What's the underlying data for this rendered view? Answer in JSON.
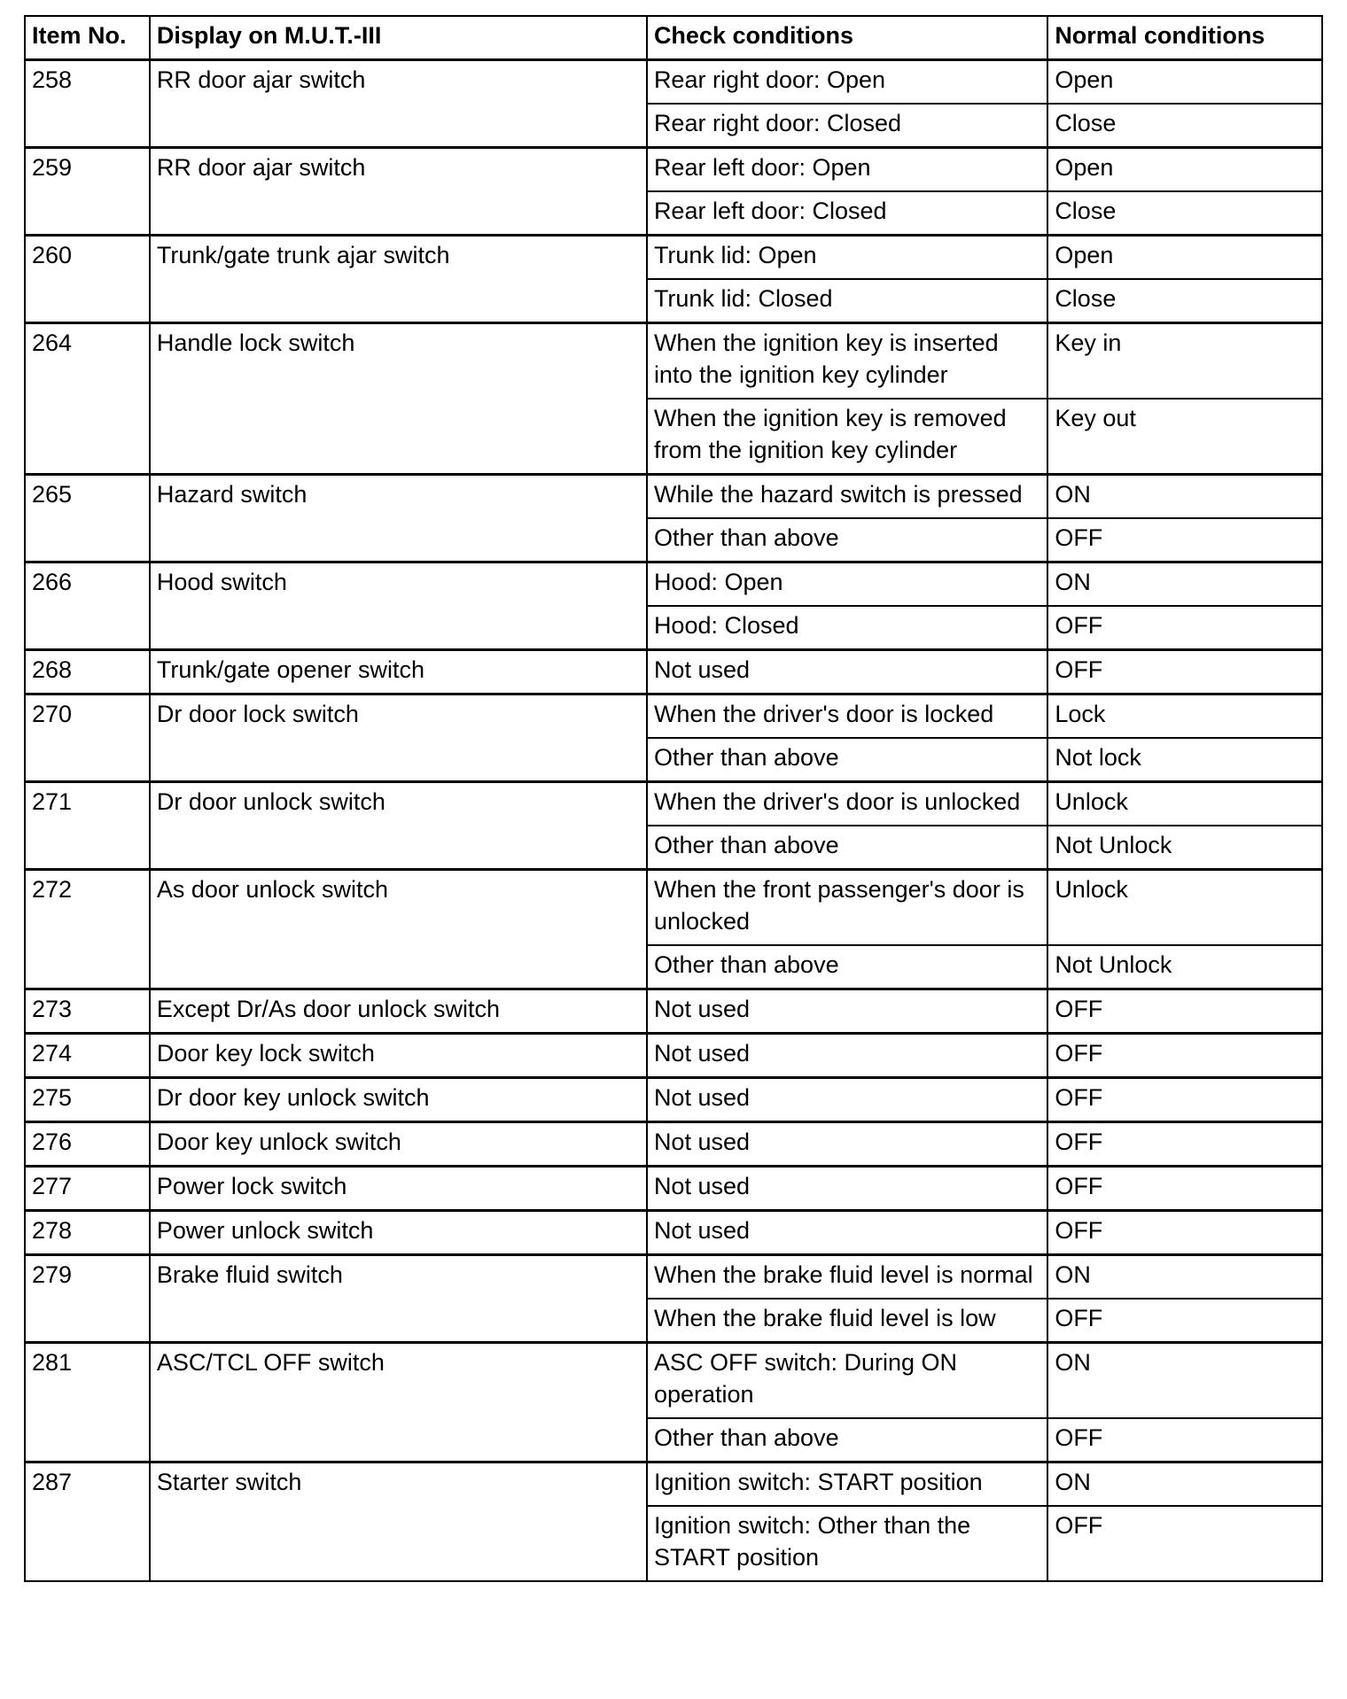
{
  "table": {
    "headers": [
      "Item No.",
      "Display on M.U.T.-III",
      "Check conditions",
      "Normal conditions"
    ],
    "items": [
      {
        "no": "258",
        "display": "RR door ajar switch",
        "rows": [
          {
            "check": "Rear right door: Open",
            "normal": "Open"
          },
          {
            "check": "Rear right door: Closed",
            "normal": "Close"
          }
        ]
      },
      {
        "no": "259",
        "display": "RR door ajar switch",
        "rows": [
          {
            "check": "Rear left door: Open",
            "normal": "Open"
          },
          {
            "check": "Rear left door: Closed",
            "normal": "Close"
          }
        ]
      },
      {
        "no": "260",
        "display": "Trunk/gate trunk ajar switch",
        "rows": [
          {
            "check": "Trunk lid: Open",
            "normal": "Open"
          },
          {
            "check": "Trunk lid: Closed",
            "normal": "Close"
          }
        ]
      },
      {
        "no": "264",
        "display": "Handle lock switch",
        "rows": [
          {
            "check": "When the ignition key is inserted into the ignition key cylinder",
            "normal": "Key in"
          },
          {
            "check": "When the ignition key is removed from the ignition key cylinder",
            "normal": "Key out"
          }
        ]
      },
      {
        "no": "265",
        "display": "Hazard switch",
        "rows": [
          {
            "check": "While the hazard switch is pressed",
            "normal": "ON"
          },
          {
            "check": "Other than above",
            "normal": "OFF"
          }
        ]
      },
      {
        "no": "266",
        "display": "Hood switch",
        "rows": [
          {
            "check": "Hood: Open",
            "normal": "ON"
          },
          {
            "check": "Hood: Closed",
            "normal": "OFF"
          }
        ]
      },
      {
        "no": "268",
        "display": "Trunk/gate opener switch",
        "rows": [
          {
            "check": "Not used",
            "normal": "OFF"
          }
        ]
      },
      {
        "no": "270",
        "display": "Dr door lock switch",
        "rows": [
          {
            "check": "When the driver's door is locked",
            "normal": "Lock"
          },
          {
            "check": "Other than above",
            "normal": "Not lock"
          }
        ]
      },
      {
        "no": "271",
        "display": "Dr door unlock switch",
        "rows": [
          {
            "check": "When the driver's door is unlocked",
            "normal": "Unlock"
          },
          {
            "check": "Other than above",
            "normal": "Not Unlock"
          }
        ]
      },
      {
        "no": "272",
        "display": "As door unlock switch",
        "rows": [
          {
            "check": "When the front passenger's door is unlocked",
            "normal": "Unlock"
          },
          {
            "check": "Other than above",
            "normal": "Not Unlock"
          }
        ]
      },
      {
        "no": "273",
        "display": "Except Dr/As door unlock switch",
        "rows": [
          {
            "check": "Not used",
            "normal": "OFF"
          }
        ]
      },
      {
        "no": "274",
        "display": "Door key lock switch",
        "rows": [
          {
            "check": "Not used",
            "normal": "OFF"
          }
        ]
      },
      {
        "no": "275",
        "display": "Dr door key unlock switch",
        "rows": [
          {
            "check": "Not used",
            "normal": "OFF"
          }
        ]
      },
      {
        "no": "276",
        "display": "Door key unlock switch",
        "rows": [
          {
            "check": "Not used",
            "normal": "OFF"
          }
        ]
      },
      {
        "no": "277",
        "display": "Power lock switch",
        "rows": [
          {
            "check": "Not used",
            "normal": "OFF"
          }
        ]
      },
      {
        "no": "278",
        "display": "Power unlock switch",
        "rows": [
          {
            "check": "Not used",
            "normal": "OFF"
          }
        ]
      },
      {
        "no": "279",
        "display": "Brake fluid switch",
        "rows": [
          {
            "check": "When the brake fluid level is normal",
            "normal": "ON"
          },
          {
            "check": "When the brake fluid level is low",
            "normal": "OFF"
          }
        ]
      },
      {
        "no": "281",
        "display": "ASC/TCL OFF switch",
        "rows": [
          {
            "check": "ASC OFF switch: During ON operation",
            "normal": "ON"
          },
          {
            "check": "Other than above",
            "normal": "OFF"
          }
        ]
      },
      {
        "no": "287",
        "display": "Starter switch",
        "rows": [
          {
            "check": "Ignition switch: START position",
            "normal": "ON"
          },
          {
            "check": "Ignition switch: Other than the START position",
            "normal": "OFF"
          }
        ]
      }
    ]
  }
}
